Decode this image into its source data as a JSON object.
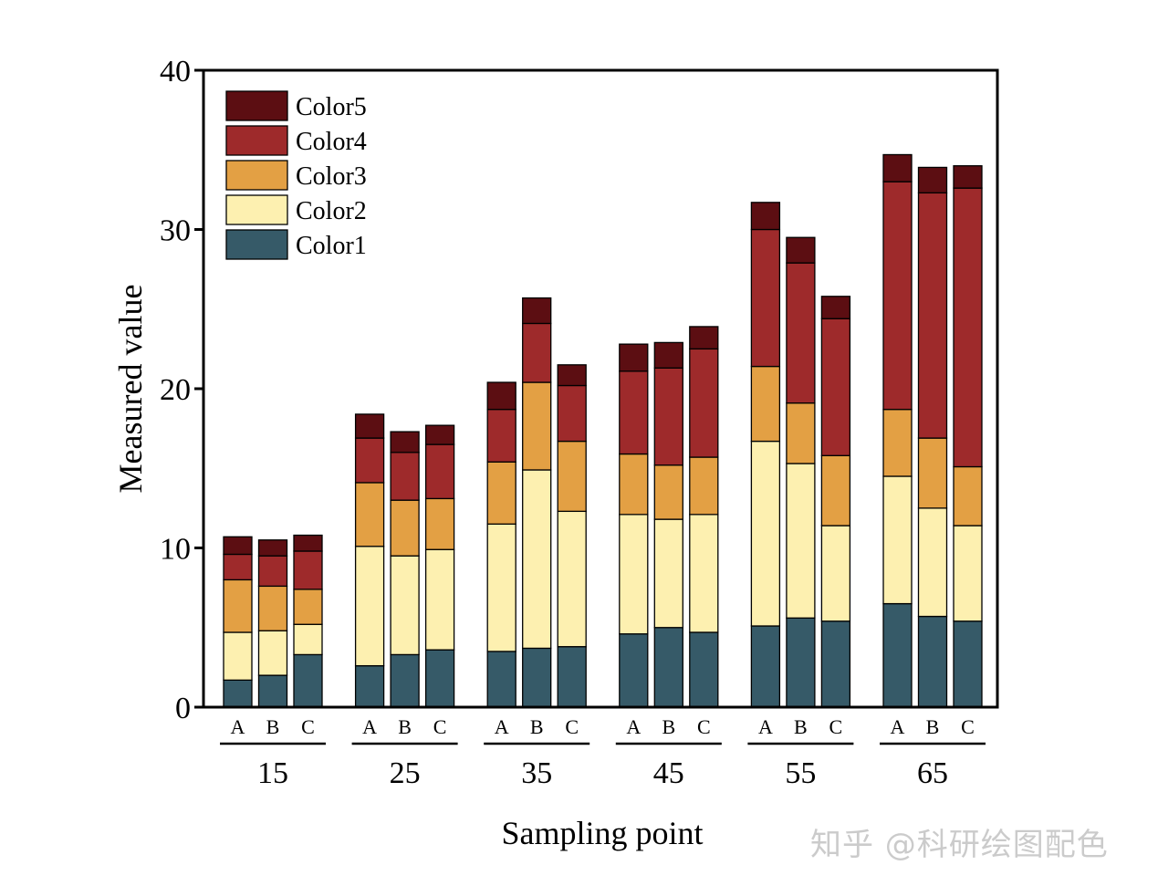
{
  "chart_data": {
    "type": "stacked-bar",
    "ylabel": "Measured value",
    "xlabel": "Sampling point",
    "ylim": [
      0,
      40
    ],
    "yticks": [
      0,
      10,
      20,
      30,
      40
    ],
    "groups": [
      "15",
      "25",
      "35",
      "45",
      "55",
      "65"
    ],
    "subcategories": [
      "A",
      "B",
      "C"
    ],
    "legend_position": "top-left",
    "series": [
      {
        "name": "Color1",
        "color": "#365a68",
        "values": [
          [
            1.7,
            2.0,
            3.3
          ],
          [
            2.6,
            3.3,
            3.6
          ],
          [
            3.5,
            3.7,
            3.8
          ],
          [
            4.6,
            5.0,
            4.7
          ],
          [
            5.1,
            5.6,
            5.4
          ],
          [
            6.5,
            5.7,
            5.4
          ]
        ]
      },
      {
        "name": "Color2",
        "color": "#fdf0b0",
        "values": [
          [
            3.0,
            2.8,
            1.9
          ],
          [
            7.5,
            6.2,
            6.3
          ],
          [
            8.0,
            11.2,
            8.5
          ],
          [
            7.5,
            6.8,
            7.4
          ],
          [
            11.6,
            9.7,
            6.0
          ],
          [
            8.0,
            6.8,
            6.0
          ]
        ]
      },
      {
        "name": "Color3",
        "color": "#e3a044",
        "values": [
          [
            3.3,
            2.8,
            2.2
          ],
          [
            4.0,
            3.5,
            3.2
          ],
          [
            3.9,
            5.5,
            4.4
          ],
          [
            3.8,
            3.4,
            3.6
          ],
          [
            4.7,
            3.8,
            4.4
          ],
          [
            4.2,
            4.4,
            3.7
          ]
        ]
      },
      {
        "name": "Color4",
        "color": "#9e2a2b",
        "values": [
          [
            1.6,
            1.9,
            2.4
          ],
          [
            2.8,
            3.0,
            3.4
          ],
          [
            3.3,
            3.7,
            3.5
          ],
          [
            5.2,
            6.1,
            6.8
          ],
          [
            8.6,
            8.8,
            8.6
          ],
          [
            14.3,
            15.4,
            17.5
          ]
        ]
      },
      {
        "name": "Color5",
        "color": "#5c0e12",
        "values": [
          [
            1.1,
            1.0,
            1.0
          ],
          [
            1.5,
            1.3,
            1.2
          ],
          [
            1.7,
            1.6,
            1.3
          ],
          [
            1.7,
            1.6,
            1.4
          ],
          [
            1.7,
            1.6,
            1.4
          ],
          [
            1.7,
            1.6,
            1.4
          ]
        ]
      }
    ]
  },
  "watermark": "知乎 @科研绘图配色"
}
